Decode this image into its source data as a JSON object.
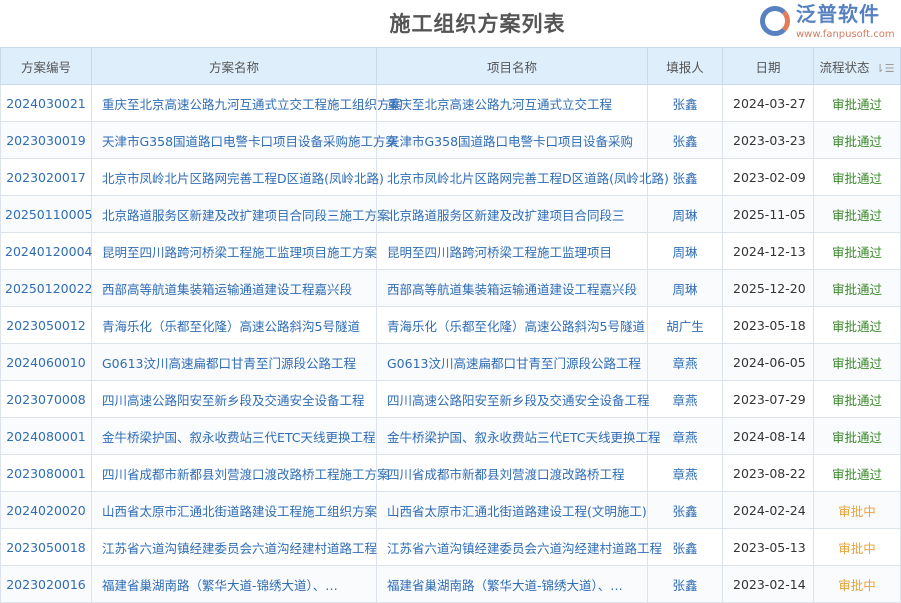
{
  "title": "施工组织方案列表",
  "columns": [
    "方案编号",
    "方案名称",
    "项目名称",
    "填报人",
    "日期",
    "流程状态"
  ],
  "colors": {
    "approved": "#3a8a2a",
    "pending": "#e8a33a",
    "link": "#2f6db5",
    "header_bg": "#deeefb"
  },
  "rows": [
    {
      "id": "2024030021",
      "plan": "重庆至北京高速公路九河互通式立交工程施工组织方案",
      "project": "重庆至北京高速公路九河互通式立交工程",
      "reporter": "张鑫",
      "date": "2024-03-27",
      "status": "审批通过"
    },
    {
      "id": "2023030019",
      "plan": "天津市G358国道路口电警卡口项目设备采购施工方案",
      "project": "天津市G358国道路口电警卡口项目设备采购",
      "reporter": "张鑫",
      "date": "2023-03-23",
      "status": "审批通过"
    },
    {
      "id": "2023020017",
      "plan": "北京市凤岭北片区路网完善工程D区道路(凤岭北路)",
      "project": "北京市凤岭北片区路网完善工程D区道路(凤岭北路)",
      "reporter": "张鑫",
      "date": "2023-02-09",
      "status": "审批通过"
    },
    {
      "id": "20250110005",
      "plan": "北京路道服务区新建及改扩建项目合同段三施工方案",
      "project": "北京路道服务区新建及改扩建项目合同段三",
      "reporter": "周琳",
      "date": "2025-11-05",
      "status": "审批通过"
    },
    {
      "id": "20240120004",
      "plan": "昆明至四川路跨河桥梁工程施工监理项目施工方案",
      "project": "昆明至四川路跨河桥梁工程施工监理项目",
      "reporter": "周琳",
      "date": "2024-12-13",
      "status": "审批通过"
    },
    {
      "id": "20250120022",
      "plan": "西部高等航道集装箱运输通道建设工程嘉兴段",
      "project": "西部高等航道集装箱运输通道建设工程嘉兴段",
      "reporter": "周琳",
      "date": "2025-12-20",
      "status": "审批通过"
    },
    {
      "id": "2023050012",
      "plan": "青海乐化（乐都至化隆）高速公路斜沟5号隧道",
      "project": "青海乐化（乐都至化隆）高速公路斜沟5号隧道",
      "reporter": "胡广生",
      "date": "2023-05-18",
      "status": "审批通过"
    },
    {
      "id": "2024060010",
      "plan": "G0613汶川高速扁都口甘青至门源段公路工程",
      "project": "G0613汶川高速扁都口甘青至门源段公路工程",
      "reporter": "章燕",
      "date": "2024-06-05",
      "status": "审批通过"
    },
    {
      "id": "2023070008",
      "plan": "四川高速公路阳安至新乡段及交通安全设备工程",
      "project": "四川高速公路阳安至新乡段及交通安全设备工程",
      "reporter": "章燕",
      "date": "2023-07-29",
      "status": "审批通过"
    },
    {
      "id": "2024080001",
      "plan": "金牛桥梁护国、叙永收费站三代ETC天线更换工程",
      "project": "金牛桥梁护国、叙永收费站三代ETC天线更换工程",
      "reporter": "章燕",
      "date": "2024-08-14",
      "status": "审批通过"
    },
    {
      "id": "2023080001",
      "plan": "四川省成都市新都县刘营渡口渡改路桥工程施工方案",
      "project": "四川省成都市新都县刘营渡口渡改路桥工程",
      "reporter": "章燕",
      "date": "2023-08-22",
      "status": "审批通过"
    },
    {
      "id": "2024020020",
      "plan": "山西省太原市汇通北街道路建设工程施工组织方案",
      "project": "山西省太原市汇通北街道路建设工程(文明施工)",
      "reporter": "张鑫",
      "date": "2024-02-24",
      "status": "审批中"
    },
    {
      "id": "2023050018",
      "plan": "江苏省六道沟镇经建委员会六道沟经建村道路工程",
      "project": "江苏省六道沟镇经建委员会六道沟经建村道路工程",
      "reporter": "张鑫",
      "date": "2023-05-13",
      "status": "审批中"
    },
    {
      "id": "2023020016",
      "plan": "福建省巢湖南路（繁华大道-锦绣大道）、…",
      "project": "福建省巢湖南路（繁华大道-锦绣大道）、…",
      "reporter": "张鑫",
      "date": "2023-02-14",
      "status": "审批中"
    }
  ],
  "watermark": {
    "name": "泛普软件",
    "url": "www.fanpusoft.com"
  }
}
